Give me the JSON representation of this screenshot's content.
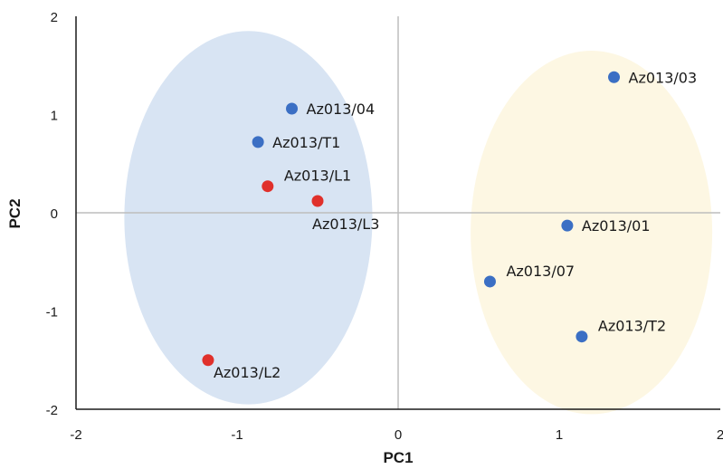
{
  "chart_data": {
    "type": "scatter",
    "title": "",
    "xlabel": "PC1",
    "ylabel": "PC2",
    "xlim": [
      -2,
      2
    ],
    "ylim": [
      -2,
      2
    ],
    "x_ticks": [
      -2,
      -1,
      0,
      1,
      2
    ],
    "y_ticks": [
      -2,
      -1,
      0,
      1,
      2
    ],
    "grid": false,
    "legend": "none",
    "colors": {
      "blue_point": "#3b6fc4",
      "red_point": "#e0302b",
      "blue_ellipse": "#d8e4f3",
      "yellow_ellipse": "#fdf7e3",
      "axis": "#1a1a1a",
      "zero_line": "#bdbdbd"
    },
    "ellipses": [
      {
        "color": "blue_ellipse",
        "cx": -0.93,
        "cy": -0.05,
        "rx": 0.77,
        "ry": 1.9
      },
      {
        "color": "yellow_ellipse",
        "cx": 1.2,
        "cy": -0.2,
        "rx": 0.75,
        "ry": 1.85
      }
    ],
    "points": [
      {
        "label": "Az013/03",
        "x": 1.34,
        "y": 1.38,
        "color": "blue_point",
        "label_pos": "right"
      },
      {
        "label": "Az013/04",
        "x": -0.66,
        "y": 1.06,
        "color": "blue_point",
        "label_pos": "right"
      },
      {
        "label": "Az013/T1",
        "x": -0.87,
        "y": 0.72,
        "color": "blue_point",
        "label_pos": "right"
      },
      {
        "label": "Az013/L1",
        "x": -0.81,
        "y": 0.27,
        "color": "red_point",
        "label_pos": "upper-right"
      },
      {
        "label": "Az013/L3",
        "x": -0.5,
        "y": 0.12,
        "color": "red_point",
        "label_pos": "below"
      },
      {
        "label": "Az013/01",
        "x": 1.05,
        "y": -0.13,
        "color": "blue_point",
        "label_pos": "right"
      },
      {
        "label": "Az013/07",
        "x": 0.57,
        "y": -0.7,
        "color": "blue_point",
        "label_pos": "upper-right"
      },
      {
        "label": "Az013/T2",
        "x": 1.14,
        "y": -1.26,
        "color": "blue_point",
        "label_pos": "upper-right"
      },
      {
        "label": "Az013/L2",
        "x": -1.18,
        "y": -1.5,
        "color": "red_point",
        "label_pos": "lower-right"
      }
    ]
  }
}
